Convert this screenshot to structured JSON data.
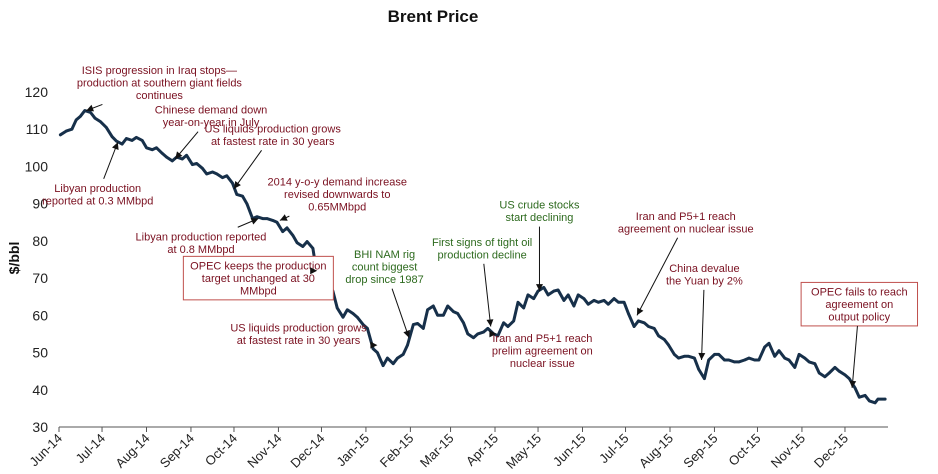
{
  "chart_data": {
    "type": "line",
    "title": "Brent Price",
    "xlabel": "",
    "ylabel": "$/bbl",
    "ylim": [
      30,
      120
    ],
    "yticks": [
      30,
      40,
      50,
      60,
      70,
      80,
      90,
      100,
      110,
      120
    ],
    "xlim": [
      "2014-06-01",
      "2015-12-31"
    ],
    "xticks": [
      {
        "date": "2014-06-01",
        "label": "Jun-14"
      },
      {
        "date": "2014-07-01",
        "label": "Jul-14"
      },
      {
        "date": "2014-08-01",
        "label": "Aug-14"
      },
      {
        "date": "2014-09-01",
        "label": "Sep-14"
      },
      {
        "date": "2014-10-01",
        "label": "Oct-14"
      },
      {
        "date": "2014-11-01",
        "label": "Nov-14"
      },
      {
        "date": "2014-12-01",
        "label": "Dec-14"
      },
      {
        "date": "2015-01-01",
        "label": "Jan-15"
      },
      {
        "date": "2015-02-01",
        "label": "Feb-15"
      },
      {
        "date": "2015-03-01",
        "label": "Mar-15"
      },
      {
        "date": "2015-04-01",
        "label": "Apr-15"
      },
      {
        "date": "2015-05-01",
        "label": "May-15"
      },
      {
        "date": "2015-06-01",
        "label": "Jun-15"
      },
      {
        "date": "2015-07-01",
        "label": "Jul-15"
      },
      {
        "date": "2015-08-01",
        "label": "Aug-15"
      },
      {
        "date": "2015-09-01",
        "label": "Sep-15"
      },
      {
        "date": "2015-10-01",
        "label": "Oct-15"
      },
      {
        "date": "2015-11-01",
        "label": "Nov-15"
      },
      {
        "date": "2015-12-01",
        "label": "Dec-15"
      }
    ],
    "grid": false,
    "line_color": "#17304a",
    "series": [
      {
        "name": "",
        "points": [
          [
            "2014-06-02",
            108.5
          ],
          [
            "2014-06-06",
            109.5
          ],
          [
            "2014-06-10",
            110.0
          ],
          [
            "2014-06-13",
            112.5
          ],
          [
            "2014-06-16",
            113.5
          ],
          [
            "2014-06-19",
            115.0
          ],
          [
            "2014-06-23",
            114.5
          ],
          [
            "2014-06-26",
            113.0
          ],
          [
            "2014-06-30",
            112.0
          ],
          [
            "2014-07-04",
            110.5
          ],
          [
            "2014-07-08",
            108.0
          ],
          [
            "2014-07-11",
            106.8
          ],
          [
            "2014-07-15",
            106.0
          ],
          [
            "2014-07-18",
            107.5
          ],
          [
            "2014-07-22",
            107.0
          ],
          [
            "2014-07-25",
            107.8
          ],
          [
            "2014-07-29",
            107.0
          ],
          [
            "2014-08-01",
            105.0
          ],
          [
            "2014-08-05",
            104.5
          ],
          [
            "2014-08-08",
            105.0
          ],
          [
            "2014-08-12",
            103.5
          ],
          [
            "2014-08-15",
            102.5
          ],
          [
            "2014-08-19",
            101.5
          ],
          [
            "2014-08-22",
            102.5
          ],
          [
            "2014-08-26",
            102.0
          ],
          [
            "2014-08-29",
            103.0
          ],
          [
            "2014-09-02",
            100.5
          ],
          [
            "2014-09-05",
            100.8
          ],
          [
            "2014-09-09",
            99.5
          ],
          [
            "2014-09-12",
            98.0
          ],
          [
            "2014-09-16",
            98.5
          ],
          [
            "2014-09-19",
            98.0
          ],
          [
            "2014-09-23",
            97.0
          ],
          [
            "2014-09-26",
            97.5
          ],
          [
            "2014-09-30",
            95.5
          ],
          [
            "2014-10-03",
            92.5
          ],
          [
            "2014-10-07",
            92.0
          ],
          [
            "2014-10-10",
            90.0
          ],
          [
            "2014-10-14",
            86.0
          ],
          [
            "2014-10-17",
            86.5
          ],
          [
            "2014-10-21",
            86.0
          ],
          [
            "2014-10-24",
            86.0
          ],
          [
            "2014-10-28",
            85.5
          ],
          [
            "2014-10-31",
            85.0
          ],
          [
            "2014-11-04",
            82.5
          ],
          [
            "2014-11-07",
            83.5
          ],
          [
            "2014-11-11",
            81.5
          ],
          [
            "2014-11-14",
            79.5
          ],
          [
            "2014-11-18",
            78.5
          ],
          [
            "2014-11-21",
            79.8
          ],
          [
            "2014-11-25",
            78.0
          ],
          [
            "2014-11-28",
            70.5
          ],
          [
            "2014-12-02",
            70.0
          ],
          [
            "2014-12-05",
            69.0
          ],
          [
            "2014-12-09",
            66.5
          ],
          [
            "2014-12-12",
            62.0
          ],
          [
            "2014-12-16",
            59.5
          ],
          [
            "2014-12-19",
            61.5
          ],
          [
            "2014-12-23",
            60.5
          ],
          [
            "2014-12-26",
            59.5
          ],
          [
            "2014-12-30",
            57.5
          ],
          [
            "2015-01-02",
            56.5
          ],
          [
            "2015-01-06",
            51.0
          ],
          [
            "2015-01-09",
            50.0
          ],
          [
            "2015-01-13",
            46.5
          ],
          [
            "2015-01-16",
            48.5
          ],
          [
            "2015-01-20",
            47.0
          ],
          [
            "2015-01-23",
            48.5
          ],
          [
            "2015-01-27",
            49.5
          ],
          [
            "2015-01-30",
            52.0
          ],
          [
            "2015-02-03",
            57.5
          ],
          [
            "2015-02-06",
            57.8
          ],
          [
            "2015-02-10",
            56.5
          ],
          [
            "2015-02-13",
            61.5
          ],
          [
            "2015-02-17",
            62.5
          ],
          [
            "2015-02-20",
            60.0
          ],
          [
            "2015-02-24",
            60.0
          ],
          [
            "2015-02-27",
            62.5
          ],
          [
            "2015-03-03",
            61.0
          ],
          [
            "2015-03-06",
            60.5
          ],
          [
            "2015-03-10",
            58.0
          ],
          [
            "2015-03-13",
            55.0
          ],
          [
            "2015-03-17",
            54.0
          ],
          [
            "2015-03-20",
            55.0
          ],
          [
            "2015-03-24",
            55.5
          ],
          [
            "2015-03-27",
            56.5
          ],
          [
            "2015-03-31",
            55.0
          ],
          [
            "2015-04-03",
            54.5
          ],
          [
            "2015-04-07",
            58.0
          ],
          [
            "2015-04-10",
            57.0
          ],
          [
            "2015-04-14",
            58.5
          ],
          [
            "2015-04-17",
            63.5
          ],
          [
            "2015-04-21",
            62.0
          ],
          [
            "2015-04-24",
            65.5
          ],
          [
            "2015-04-28",
            64.5
          ],
          [
            "2015-05-01",
            66.5
          ],
          [
            "2015-05-05",
            67.5
          ],
          [
            "2015-05-08",
            65.5
          ],
          [
            "2015-05-12",
            66.5
          ],
          [
            "2015-05-15",
            66.8
          ],
          [
            "2015-05-19",
            64.0
          ],
          [
            "2015-05-22",
            65.5
          ],
          [
            "2015-05-26",
            62.5
          ],
          [
            "2015-05-29",
            65.5
          ],
          [
            "2015-06-02",
            64.5
          ],
          [
            "2015-06-05",
            63.0
          ],
          [
            "2015-06-09",
            64.0
          ],
          [
            "2015-06-12",
            63.5
          ],
          [
            "2015-06-16",
            64.0
          ],
          [
            "2015-06-19",
            63.0
          ],
          [
            "2015-06-23",
            64.5
          ],
          [
            "2015-06-26",
            63.5
          ],
          [
            "2015-06-30",
            63.5
          ],
          [
            "2015-07-03",
            60.5
          ],
          [
            "2015-07-07",
            57.0
          ],
          [
            "2015-07-10",
            58.5
          ],
          [
            "2015-07-14",
            58.0
          ],
          [
            "2015-07-17",
            57.0
          ],
          [
            "2015-07-21",
            56.5
          ],
          [
            "2015-07-24",
            54.5
          ],
          [
            "2015-07-28",
            53.5
          ],
          [
            "2015-07-31",
            52.0
          ],
          [
            "2015-08-04",
            49.5
          ],
          [
            "2015-08-07",
            48.5
          ],
          [
            "2015-08-11",
            49.0
          ],
          [
            "2015-08-14",
            49.0
          ],
          [
            "2015-08-18",
            48.5
          ],
          [
            "2015-08-21",
            45.5
          ],
          [
            "2015-08-25",
            43.0
          ],
          [
            "2015-08-28",
            48.0
          ],
          [
            "2015-09-01",
            49.5
          ],
          [
            "2015-09-04",
            49.5
          ],
          [
            "2015-09-08",
            48.0
          ],
          [
            "2015-09-11",
            48.0
          ],
          [
            "2015-09-15",
            47.5
          ],
          [
            "2015-09-18",
            47.5
          ],
          [
            "2015-09-22",
            48.0
          ],
          [
            "2015-09-25",
            48.5
          ],
          [
            "2015-09-29",
            48.0
          ],
          [
            "2015-10-02",
            48.0
          ],
          [
            "2015-10-06",
            51.5
          ],
          [
            "2015-10-09",
            52.5
          ],
          [
            "2015-10-13",
            49.0
          ],
          [
            "2015-10-16",
            50.5
          ],
          [
            "2015-10-20",
            48.5
          ],
          [
            "2015-10-23",
            48.0
          ],
          [
            "2015-10-27",
            46.0
          ],
          [
            "2015-10-30",
            49.5
          ],
          [
            "2015-11-03",
            48.5
          ],
          [
            "2015-11-06",
            47.5
          ],
          [
            "2015-11-10",
            47.0
          ],
          [
            "2015-11-13",
            44.5
          ],
          [
            "2015-11-17",
            43.5
          ],
          [
            "2015-11-20",
            44.5
          ],
          [
            "2015-11-24",
            46.0
          ],
          [
            "2015-11-27",
            45.0
          ],
          [
            "2015-12-01",
            44.0
          ],
          [
            "2015-12-04",
            43.0
          ],
          [
            "2015-12-08",
            40.5
          ],
          [
            "2015-12-11",
            38.0
          ],
          [
            "2015-12-15",
            38.5
          ],
          [
            "2015-12-18",
            37.0
          ],
          [
            "2015-12-22",
            36.5
          ],
          [
            "2015-12-24",
            37.5
          ],
          [
            "2015-12-29",
            37.5
          ]
        ]
      }
    ],
    "annotations": [
      {
        "lines": [
          "ISIS progression in Iraq stops—",
          "production at southern giant fields",
          "continues"
        ],
        "color": "red",
        "boxed": false,
        "point": [
          "2014-06-20",
          115
        ],
        "label_at": [
          "2014-08-10",
          122.5
        ]
      },
      {
        "lines": [
          "Chinese demand down",
          "year-on-year in July"
        ],
        "color": "red",
        "boxed": false,
        "point": [
          "2014-08-21",
          102
        ],
        "label_at": [
          "2014-09-15",
          113.5
        ]
      },
      {
        "lines": [
          "Libyan production",
          "reported at 0.3 MMbpd"
        ],
        "color": "red",
        "boxed": false,
        "point": [
          "2014-07-12",
          106.5
        ],
        "label_at": [
          "2014-06-28",
          92.5
        ]
      },
      {
        "lines": [
          "US liquids production grows",
          "at fastest rate in 30 years"
        ],
        "color": "red",
        "boxed": false,
        "point": [
          "2014-10-01",
          94
        ],
        "label_at": [
          "2014-10-28",
          108.5
        ]
      },
      {
        "lines": [
          "2014 y-o-y demand increase",
          "revised downwards to",
          "0.65MMbpd"
        ],
        "color": "red",
        "boxed": false,
        "point": [
          "2014-11-02",
          85.5
        ],
        "label_at": [
          "2014-12-12",
          92.5
        ]
      },
      {
        "lines": [
          "Libyan production reported",
          "at 0.8 MMbpd"
        ],
        "color": "red",
        "boxed": false,
        "point": [
          "2014-10-18",
          86
        ],
        "label_at": [
          "2014-09-08",
          79.5
        ]
      },
      {
        "lines": [
          "OPEC keeps the production",
          "target unchanged at 30",
          "MMbpd"
        ],
        "color": "red",
        "boxed": true,
        "point": [
          "2014-11-28",
          72
        ],
        "label_at": [
          "2014-10-18",
          70
        ]
      },
      {
        "lines": [
          "BHI NAM rig",
          "count biggest",
          "drop since 1987"
        ],
        "color": "green",
        "boxed": false,
        "point": [
          "2015-01-31",
          54
        ],
        "label_at": [
          "2015-01-14",
          73
        ]
      },
      {
        "lines": [
          "First signs of tight oil",
          "production decline"
        ],
        "color": "green",
        "boxed": false,
        "point": [
          "2015-03-29",
          57
        ],
        "label_at": [
          "2015-03-23",
          78
        ]
      },
      {
        "lines": [
          "US crude stocks",
          "start declining"
        ],
        "color": "green",
        "boxed": false,
        "point": [
          "2015-05-02",
          66.5
        ],
        "label_at": [
          "2015-05-02",
          88
        ]
      },
      {
        "lines": [
          "US liquids production grows",
          "at fastest rate in 30 years"
        ],
        "color": "red",
        "boxed": false,
        "point": [
          "2015-01-09",
          52
        ],
        "label_at": [
          "2014-11-15",
          55
        ]
      },
      {
        "lines": [
          "Iran and P5+1 reach",
          "prelim agreement on",
          "nuclear issue"
        ],
        "color": "red",
        "boxed": false,
        "point": [
          "2015-04-02",
          55
        ],
        "label_at": [
          "2015-05-04",
          50.5
        ]
      },
      {
        "lines": [
          "Iran and P5+1 reach",
          "agreement on nuclear issue"
        ],
        "color": "red",
        "boxed": false,
        "point": [
          "2015-07-09",
          60
        ],
        "label_at": [
          "2015-08-12",
          85
        ]
      },
      {
        "lines": [
          "China devalue",
          "the Yuan by 2%"
        ],
        "color": "red",
        "boxed": false,
        "point": [
          "2015-08-23",
          48
        ],
        "label_at": [
          "2015-08-25",
          71
        ]
      },
      {
        "lines": [
          "OPEC fails to reach",
          "agreement on",
          "output policy"
        ],
        "color": "red",
        "boxed": true,
        "point": [
          "2015-12-06",
          40.5
        ],
        "label_at": [
          "2015-12-11",
          63
        ]
      }
    ]
  }
}
